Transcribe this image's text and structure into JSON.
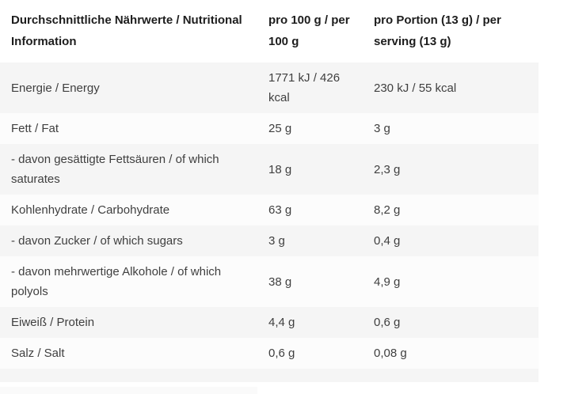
{
  "colors": {
    "page_bg": "#ffffff",
    "stripe": "#f5f5f5",
    "stripe_alt": "#fcfcfc",
    "header_text": "#1d1d1d",
    "body_text": "#3f3f3f",
    "partial_block": "#fafafa"
  },
  "table": {
    "header": [
      {
        "lines": [
          "Durchschnittliche Nährwerte / Nutritional",
          "Information"
        ]
      },
      {
        "lines": [
          "pro 100 g / per",
          "100 g"
        ]
      },
      {
        "lines": [
          "pro Portion (13 g) / per",
          "serving (13 g)"
        ]
      }
    ],
    "rows": [
      {
        "label": "Energie / Energy",
        "per_100g": "1771 kJ / 426 kcal",
        "per_serving": "230 kJ / 55 kcal"
      },
      {
        "label": "Fett / Fat",
        "per_100g": "25 g",
        "per_serving": "3 g"
      },
      {
        "label": "- davon gesättigte Fettsäuren / of which saturates",
        "per_100g": "18 g",
        "per_serving": "2,3 g"
      },
      {
        "label": "Kohlenhydrate / Carbohydrate",
        "per_100g": "63 g",
        "per_serving": "8,2 g"
      },
      {
        "label": "- davon Zucker / of which sugars",
        "per_100g": "3 g",
        "per_serving": "0,4 g"
      },
      {
        "label": "- davon mehrwertige Alkohole / of which polyols",
        "per_100g": "38 g",
        "per_serving": "4,9 g"
      },
      {
        "label": "Eiweiß / Protein",
        "per_100g": "4,4 g",
        "per_serving": "0,6 g"
      },
      {
        "label": "Salz / Salt",
        "per_100g": "0,6 g",
        "per_serving": "0,08 g"
      }
    ]
  }
}
